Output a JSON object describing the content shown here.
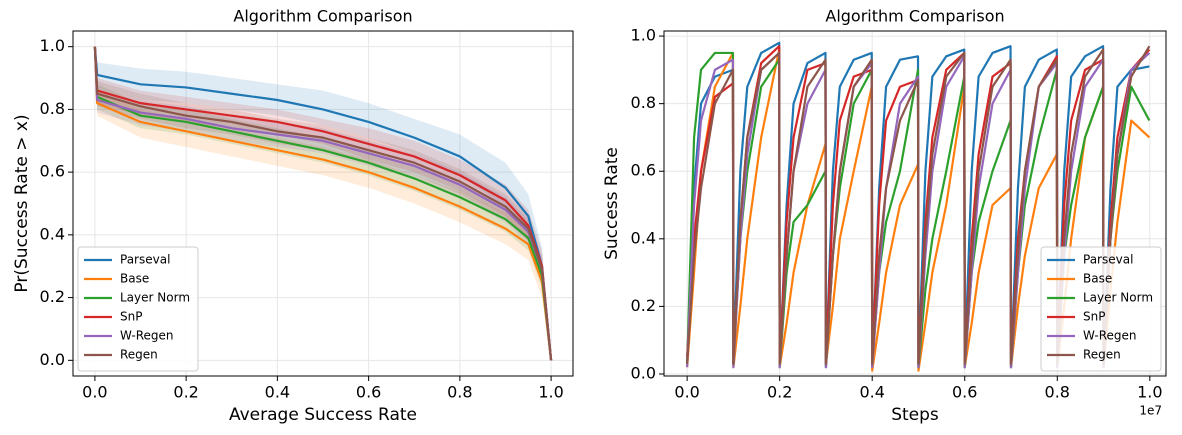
{
  "chart_data": [
    {
      "type": "line",
      "title": "Algorithm Comparison",
      "xlabel": "Average Success Rate",
      "ylabel": "Pr(Success Rate > x)",
      "x": [
        0,
        0.005,
        0.1,
        0.2,
        0.3,
        0.4,
        0.5,
        0.6,
        0.7,
        0.8,
        0.9,
        0.95,
        0.98,
        1.0
      ],
      "series": [
        {
          "name": "Parseval",
          "color": "#1f77b4",
          "values": [
            1.0,
            0.91,
            0.88,
            0.87,
            0.85,
            0.83,
            0.8,
            0.76,
            0.71,
            0.65,
            0.55,
            0.46,
            0.3,
            0.0
          ],
          "upper": [
            1.0,
            0.95,
            0.93,
            0.92,
            0.9,
            0.88,
            0.86,
            0.82,
            0.77,
            0.72,
            0.63,
            0.53,
            0.36,
            0.0
          ],
          "lower": [
            1.0,
            0.87,
            0.83,
            0.82,
            0.8,
            0.78,
            0.75,
            0.71,
            0.66,
            0.59,
            0.49,
            0.4,
            0.25,
            0.0
          ]
        },
        {
          "name": "Base",
          "color": "#ff7f0e",
          "values": [
            1.0,
            0.82,
            0.76,
            0.73,
            0.7,
            0.67,
            0.64,
            0.6,
            0.55,
            0.49,
            0.42,
            0.37,
            0.25,
            0.0
          ],
          "upper": [
            1.0,
            0.86,
            0.8,
            0.77,
            0.74,
            0.71,
            0.68,
            0.64,
            0.59,
            0.54,
            0.47,
            0.42,
            0.3,
            0.0
          ],
          "lower": [
            1.0,
            0.78,
            0.71,
            0.68,
            0.65,
            0.62,
            0.59,
            0.55,
            0.5,
            0.44,
            0.37,
            0.32,
            0.2,
            0.0
          ]
        },
        {
          "name": "Layer Norm",
          "color": "#2ca02c",
          "values": [
            1.0,
            0.84,
            0.78,
            0.76,
            0.73,
            0.7,
            0.67,
            0.63,
            0.58,
            0.52,
            0.45,
            0.39,
            0.27,
            0.0
          ],
          "upper": [
            1.0,
            0.88,
            0.82,
            0.8,
            0.77,
            0.74,
            0.71,
            0.67,
            0.62,
            0.56,
            0.49,
            0.43,
            0.31,
            0.0
          ],
          "lower": [
            1.0,
            0.8,
            0.74,
            0.72,
            0.69,
            0.66,
            0.63,
            0.59,
            0.54,
            0.48,
            0.41,
            0.35,
            0.23,
            0.0
          ]
        },
        {
          "name": "SnP",
          "color": "#d62728",
          "values": [
            1.0,
            0.86,
            0.82,
            0.8,
            0.78,
            0.76,
            0.73,
            0.69,
            0.65,
            0.59,
            0.51,
            0.43,
            0.3,
            0.0
          ],
          "upper": [
            1.0,
            0.9,
            0.86,
            0.84,
            0.82,
            0.8,
            0.77,
            0.74,
            0.7,
            0.64,
            0.56,
            0.48,
            0.35,
            0.0
          ],
          "lower": [
            1.0,
            0.82,
            0.78,
            0.76,
            0.74,
            0.72,
            0.69,
            0.64,
            0.6,
            0.54,
            0.46,
            0.38,
            0.25,
            0.0
          ]
        },
        {
          "name": "W-Regen",
          "color": "#9467bd",
          "values": [
            1.0,
            0.83,
            0.79,
            0.77,
            0.74,
            0.72,
            0.7,
            0.66,
            0.62,
            0.56,
            0.48,
            0.41,
            0.29,
            0.0
          ],
          "upper": [
            1.0,
            0.87,
            0.83,
            0.81,
            0.78,
            0.76,
            0.74,
            0.7,
            0.66,
            0.6,
            0.52,
            0.45,
            0.33,
            0.0
          ],
          "lower": [
            1.0,
            0.79,
            0.75,
            0.73,
            0.7,
            0.68,
            0.66,
            0.62,
            0.58,
            0.52,
            0.44,
            0.37,
            0.25,
            0.0
          ]
        },
        {
          "name": "Regen",
          "color": "#8c564b",
          "values": [
            1.0,
            0.85,
            0.81,
            0.78,
            0.76,
            0.73,
            0.71,
            0.67,
            0.63,
            0.57,
            0.49,
            0.42,
            0.29,
            0.0
          ],
          "upper": [
            1.0,
            0.89,
            0.85,
            0.82,
            0.8,
            0.77,
            0.75,
            0.71,
            0.67,
            0.61,
            0.53,
            0.46,
            0.33,
            0.0
          ],
          "lower": [
            1.0,
            0.81,
            0.77,
            0.74,
            0.72,
            0.69,
            0.67,
            0.63,
            0.59,
            0.53,
            0.45,
            0.38,
            0.25,
            0.0
          ]
        }
      ],
      "xlim": [
        -0.048,
        1.048
      ],
      "ylim": [
        -0.05,
        1.05
      ],
      "xticks": [
        {
          "value": 0,
          "label": "0.0"
        },
        0.2,
        0.4,
        0.6,
        0.8,
        {
          "value": 1,
          "label": "1.0"
        }
      ],
      "yticks": [
        {
          "value": 0,
          "label": "0.0"
        },
        0.2,
        0.4,
        0.6,
        0.8,
        {
          "value": 1,
          "label": "1.0"
        }
      ],
      "grid": true,
      "legend": "lower left"
    },
    {
      "type": "line",
      "title": "Algorithm Comparison",
      "xlabel": "Steps",
      "ylabel": "Success Rate",
      "x_offset_label": "1e7",
      "x": [
        0,
        0.015,
        0.03,
        0.06,
        0.099,
        0.1,
        0.115,
        0.13,
        0.16,
        0.199,
        0.2,
        0.215,
        0.23,
        0.26,
        0.299,
        0.3,
        0.315,
        0.33,
        0.36,
        0.399,
        0.4,
        0.415,
        0.43,
        0.46,
        0.499,
        0.5,
        0.515,
        0.53,
        0.56,
        0.599,
        0.6,
        0.615,
        0.63,
        0.66,
        0.699,
        0.7,
        0.715,
        0.73,
        0.76,
        0.799,
        0.8,
        0.815,
        0.83,
        0.86,
        0.899,
        0.9,
        0.915,
        0.93,
        0.96,
        0.999
      ],
      "series": [
        {
          "name": "Parseval",
          "color": "#1f77b4",
          "values": [
            0.03,
            0.55,
            0.8,
            0.88,
            0.9,
            0.03,
            0.6,
            0.85,
            0.95,
            0.98,
            0.02,
            0.5,
            0.8,
            0.92,
            0.95,
            0.02,
            0.6,
            0.85,
            0.93,
            0.95,
            0.02,
            0.55,
            0.85,
            0.93,
            0.94,
            0.02,
            0.6,
            0.88,
            0.94,
            0.96,
            0.02,
            0.6,
            0.88,
            0.95,
            0.97,
            0.02,
            0.55,
            0.85,
            0.93,
            0.96,
            0.02,
            0.6,
            0.88,
            0.94,
            0.97,
            0.02,
            0.55,
            0.85,
            0.9,
            0.91
          ]
        },
        {
          "name": "Base",
          "color": "#ff7f0e",
          "values": [
            0.02,
            0.3,
            0.6,
            0.85,
            0.95,
            0.02,
            0.2,
            0.4,
            0.7,
            0.96,
            0.02,
            0.15,
            0.3,
            0.5,
            0.68,
            0.03,
            0.2,
            0.4,
            0.6,
            0.85,
            0.01,
            0.15,
            0.3,
            0.5,
            0.62,
            0.01,
            0.15,
            0.3,
            0.5,
            0.85,
            0.02,
            0.15,
            0.3,
            0.5,
            0.55,
            0.02,
            0.2,
            0.35,
            0.55,
            0.65,
            0.02,
            0.2,
            0.4,
            0.7,
            0.85,
            0.02,
            0.25,
            0.45,
            0.75,
            0.7
          ]
        },
        {
          "name": "Layer Norm",
          "color": "#2ca02c",
          "values": [
            0.03,
            0.7,
            0.9,
            0.95,
            0.95,
            0.03,
            0.4,
            0.6,
            0.85,
            0.93,
            0.02,
            0.3,
            0.45,
            0.5,
            0.6,
            0.02,
            0.35,
            0.55,
            0.8,
            0.9,
            0.03,
            0.3,
            0.45,
            0.6,
            0.9,
            0.02,
            0.25,
            0.4,
            0.6,
            0.88,
            0.02,
            0.3,
            0.45,
            0.6,
            0.75,
            0.02,
            0.3,
            0.5,
            0.7,
            0.9,
            0.02,
            0.35,
            0.5,
            0.7,
            0.85,
            0.02,
            0.4,
            0.6,
            0.85,
            0.75
          ]
        },
        {
          "name": "SnP",
          "color": "#d62728",
          "values": [
            0.05,
            0.4,
            0.6,
            0.82,
            0.86,
            0.03,
            0.45,
            0.7,
            0.92,
            0.97,
            0.03,
            0.45,
            0.7,
            0.9,
            0.92,
            0.03,
            0.5,
            0.75,
            0.88,
            0.9,
            0.03,
            0.5,
            0.75,
            0.85,
            0.87,
            0.03,
            0.45,
            0.7,
            0.9,
            0.95,
            0.03,
            0.4,
            0.65,
            0.88,
            0.92,
            0.03,
            0.4,
            0.6,
            0.85,
            0.94,
            0.03,
            0.5,
            0.75,
            0.9,
            0.93,
            0.03,
            0.45,
            0.7,
            0.9,
            0.96
          ]
        },
        {
          "name": "W-Regen",
          "color": "#9467bd",
          "values": [
            0.02,
            0.5,
            0.75,
            0.9,
            0.93,
            0.02,
            0.4,
            0.65,
            0.9,
            0.95,
            0.02,
            0.35,
            0.6,
            0.8,
            0.9,
            0.02,
            0.35,
            0.6,
            0.85,
            0.92,
            0.02,
            0.3,
            0.55,
            0.8,
            0.88,
            0.02,
            0.35,
            0.6,
            0.85,
            0.94,
            0.02,
            0.3,
            0.55,
            0.8,
            0.9,
            0.02,
            0.3,
            0.55,
            0.85,
            0.92,
            0.02,
            0.35,
            0.6,
            0.85,
            0.93,
            0.02,
            0.4,
            0.65,
            0.9,
            0.95
          ]
        },
        {
          "name": "Regen",
          "color": "#8c564b",
          "values": [
            0.03,
            0.35,
            0.55,
            0.8,
            0.9,
            0.03,
            0.45,
            0.7,
            0.9,
            0.95,
            0.03,
            0.35,
            0.6,
            0.85,
            0.93,
            0.03,
            0.35,
            0.6,
            0.85,
            0.93,
            0.03,
            0.35,
            0.55,
            0.75,
            0.87,
            0.03,
            0.4,
            0.65,
            0.88,
            0.95,
            0.03,
            0.35,
            0.6,
            0.85,
            0.93,
            0.03,
            0.35,
            0.6,
            0.85,
            0.93,
            0.03,
            0.4,
            0.65,
            0.88,
            0.96,
            0.03,
            0.4,
            0.65,
            0.88,
            0.97
          ]
        }
      ],
      "xlim": [
        -0.05,
        1.035
      ],
      "ylim": [
        -0.006,
        1.015
      ],
      "xticks": [
        {
          "value": 0,
          "label": "0.0"
        },
        0.2,
        0.4,
        0.6,
        0.8,
        {
          "value": 1,
          "label": "1.0"
        }
      ],
      "yticks": [
        {
          "value": 0,
          "label": "0.0"
        },
        0.2,
        0.4,
        0.6,
        0.8,
        {
          "value": 1,
          "label": "1.0"
        }
      ],
      "grid": true,
      "legend": "lower right"
    }
  ]
}
